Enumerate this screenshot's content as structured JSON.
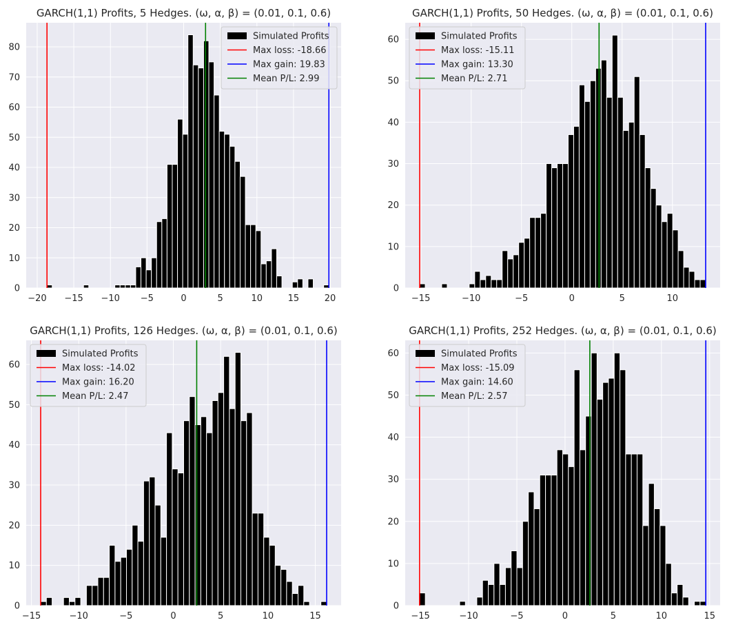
{
  "chart_data": [
    {
      "type": "bar",
      "title": "GARCH(1,1) Profits, 5 Hedges. (ω, α, β) = (0.01, 0.1, 0.6)",
      "xlim": [
        -21.5,
        21.5
      ],
      "ylim": [
        0,
        88
      ],
      "xticks": [
        -20,
        -15,
        -10,
        -5,
        0,
        5,
        10,
        15,
        20
      ],
      "yticks": [
        0,
        10,
        20,
        30,
        40,
        50,
        60,
        70,
        80
      ],
      "bin_range": [
        -18.66,
        19.83
      ],
      "bar_values": [
        1,
        0,
        0,
        0,
        0,
        0,
        0,
        1,
        0,
        0,
        0,
        0,
        0,
        1,
        1,
        1,
        1,
        7,
        10,
        6,
        10,
        22,
        23,
        41,
        41,
        56,
        51,
        84,
        74,
        73,
        82,
        75,
        64,
        52,
        51,
        47,
        42,
        37,
        21,
        21,
        19,
        8,
        9,
        13,
        4,
        0,
        0,
        2,
        3,
        0,
        3,
        0,
        0,
        1
      ],
      "grid": true,
      "legend_position": "top-right",
      "legend": [
        {
          "label": "Simulated Profits",
          "kind": "patch",
          "color": "#000000"
        },
        {
          "label": "Max loss: -18.66",
          "kind": "line",
          "color": "#ff0000"
        },
        {
          "label": "Max gain: 19.83",
          "kind": "line",
          "color": "#0000ff"
        },
        {
          "label": "Mean P/L: 2.99",
          "kind": "line",
          "color": "#008000"
        }
      ],
      "vlines": [
        {
          "x": -18.66,
          "color": "#ff0000"
        },
        {
          "x": 19.83,
          "color": "#0000ff"
        },
        {
          "x": 2.99,
          "color": "#008000"
        }
      ]
    },
    {
      "type": "bar",
      "title": "GARCH(1,1) Profits, 50 Hedges. (ω, α, β) = (0.01, 0.1, 0.6)",
      "xlim": [
        -16.55,
        14.74
      ],
      "ylim": [
        0,
        64
      ],
      "xticks": [
        -15,
        -10,
        -5,
        0,
        5,
        10
      ],
      "yticks": [
        0,
        10,
        20,
        30,
        40,
        50,
        60
      ],
      "bin_range": [
        -15.11,
        13.3
      ],
      "bar_values": [
        1,
        0,
        0,
        0,
        1,
        0,
        0,
        0,
        0,
        1,
        4,
        2,
        3,
        2,
        2,
        9,
        7,
        8,
        11,
        12,
        17,
        17,
        18,
        30,
        29,
        30,
        30,
        37,
        39,
        49,
        45,
        50,
        53,
        55,
        46,
        61,
        46,
        38,
        40,
        51,
        37,
        29,
        24,
        20,
        16,
        18,
        14,
        9,
        5,
        4,
        2,
        2
      ],
      "grid": true,
      "legend_position": "top-left",
      "legend": [
        {
          "label": "Simulated Profits",
          "kind": "patch",
          "color": "#000000"
        },
        {
          "label": "Max loss: -15.11",
          "kind": "line",
          "color": "#ff0000"
        },
        {
          "label": "Max gain: 13.30",
          "kind": "line",
          "color": "#0000ff"
        },
        {
          "label": "Mean P/L: 2.71",
          "kind": "line",
          "color": "#008000"
        }
      ],
      "vlines": [
        {
          "x": -15.11,
          "color": "#ff0000"
        },
        {
          "x": 13.3,
          "color": "#0000ff"
        },
        {
          "x": 2.71,
          "color": "#008000"
        }
      ]
    },
    {
      "type": "bar",
      "title": "GARCH(1,1) Profits, 126 Hedges. (ω, α, β) = (0.01, 0.1, 0.6)",
      "xlim": [
        -15.55,
        17.73
      ],
      "ylim": [
        0,
        66
      ],
      "xticks": [
        -15,
        -10,
        -5,
        0,
        5,
        10,
        15
      ],
      "yticks": [
        0,
        10,
        20,
        30,
        40,
        50,
        60
      ],
      "bin_range": [
        -14.02,
        16.2
      ],
      "bar_values": [
        1,
        2,
        0,
        0,
        2,
        1,
        2,
        0,
        5,
        5,
        7,
        7,
        15,
        11,
        12,
        14,
        20,
        16,
        31,
        32,
        25,
        17,
        43,
        34,
        33,
        46,
        52,
        45,
        47,
        43,
        51,
        53,
        62,
        49,
        63,
        46,
        48,
        23,
        23,
        17,
        15,
        10,
        9,
        6,
        3,
        5,
        1,
        0,
        0,
        1
      ],
      "grid": true,
      "legend_position": "top-left",
      "legend": [
        {
          "label": "Simulated Profits",
          "kind": "patch",
          "color": "#000000"
        },
        {
          "label": "Max loss: -14.02",
          "kind": "line",
          "color": "#ff0000"
        },
        {
          "label": "Max gain: 16.20",
          "kind": "line",
          "color": "#0000ff"
        },
        {
          "label": "Mean P/L: 2.47",
          "kind": "line",
          "color": "#008000"
        }
      ],
      "vlines": [
        {
          "x": -14.02,
          "color": "#ff0000"
        },
        {
          "x": 16.2,
          "color": "#0000ff"
        },
        {
          "x": 2.47,
          "color": "#008000"
        }
      ]
    },
    {
      "type": "bar",
      "title": "GARCH(1,1) Profits, 252 Hedges. (ω, α, β) = (0.01, 0.1, 0.6)",
      "xlim": [
        -16.58,
        16.09
      ],
      "ylim": [
        0,
        63
      ],
      "xticks": [
        -15,
        -10,
        -5,
        0,
        5,
        10,
        15
      ],
      "yticks": [
        0,
        10,
        20,
        30,
        40,
        50,
        60
      ],
      "bin_range": [
        -15.09,
        14.6
      ],
      "bar_values": [
        3,
        0,
        0,
        0,
        0,
        0,
        0,
        1,
        0,
        0,
        2,
        6,
        5,
        10,
        5,
        9,
        13,
        9,
        20,
        27,
        23,
        31,
        31,
        31,
        37,
        36,
        33,
        56,
        37,
        45,
        60,
        49,
        53,
        54,
        60,
        56,
        36,
        36,
        36,
        19,
        29,
        23,
        19,
        10,
        3,
        5,
        2,
        0,
        1,
        1
      ],
      "grid": true,
      "legend_position": "top-left",
      "legend": [
        {
          "label": "Simulated Profits",
          "kind": "patch",
          "color": "#000000"
        },
        {
          "label": "Max loss: -15.09",
          "kind": "line",
          "color": "#ff0000"
        },
        {
          "label": "Max gain: 14.60",
          "kind": "line",
          "color": "#0000ff"
        },
        {
          "label": "Mean P/L: 2.57",
          "kind": "line",
          "color": "#008000"
        }
      ],
      "vlines": [
        {
          "x": -15.09,
          "color": "#ff0000"
        },
        {
          "x": 14.6,
          "color": "#0000ff"
        },
        {
          "x": 2.57,
          "color": "#008000"
        }
      ]
    }
  ]
}
